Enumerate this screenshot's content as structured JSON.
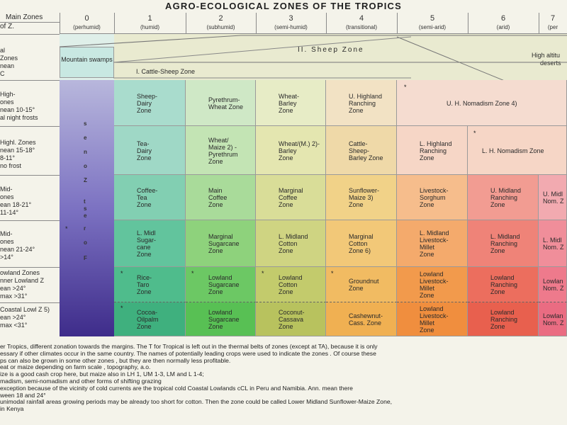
{
  "title": "AGRO-ECOLOGICAL ZONES OF THE TROPICS",
  "header": {
    "corner_line1": "Main Zones",
    "corner_line2": "of Z."
  },
  "columns": [
    {
      "num": "0",
      "sub": "(perhumid)"
    },
    {
      "num": "1",
      "sub": "(humid)"
    },
    {
      "num": "2",
      "sub": "(subhumid)"
    },
    {
      "num": "3",
      "sub": "(semi-humid)"
    },
    {
      "num": "4",
      "sub": "(transitional)"
    },
    {
      "num": "5",
      "sub": "(semi-arid)"
    },
    {
      "num": "6",
      "sub": "(arid)"
    },
    {
      "num": "7",
      "sub": "(per"
    }
  ],
  "row_labels": [
    [
      "al",
      "Zones",
      "nean",
      "C"
    ],
    [
      "High-",
      "ones",
      "nean 10-15°",
      "al night frosts"
    ],
    [
      "Highl. Zones",
      "nean 15-18°",
      "8-11°",
      "no frost"
    ],
    [
      "Mid-",
      "ones",
      "ean 18-21°",
      "11-14°"
    ],
    [
      "Mid-",
      "ones",
      "nean 21-24°",
      ">14°"
    ],
    [
      "owland Zones",
      "nner Lowland Z",
      "ean >24°",
      "max >31°"
    ],
    [
      "Coastal Lowl Z 5)",
      "ean >24°",
      "max <31°"
    ]
  ],
  "top_zones": {
    "mountain": "Mountain swamps",
    "sheep": "II. Sheep Zone",
    "cattle_sheep": "I. Cattle-Sheep Zone",
    "high_alt": "High altitu",
    "deserts": "deserts"
  },
  "forest_label": [
    "F",
    "o",
    "r",
    "e",
    "s",
    "t",
    "Z",
    "o",
    "n",
    "e",
    "s"
  ],
  "cells": {
    "r1c1": "Sheep-\nDairy\nZone",
    "r1c2": "Pyrethrum-\nWheat Zone",
    "r1c3": "Wheat-\nBarley\nZone",
    "r1c4": "U. Highland\nRanching\nZone",
    "r1c5": "U. H. Nomadism Zone 4)",
    "r2c1": "Tea-\nDairy\nZone",
    "r2c2": "Wheat/\nMaize 2) -\nPyrethrum\nZone",
    "r2c3": "Wheat/(M.) 2)-\nBarley\nZone",
    "r2c4": "Cattle-\nSheep-\nBarley Zone",
    "r2c5": "L. Highland\nRanching\nZone",
    "r2c6": "L. H. Nomadism Zone",
    "r3c1": "Coffee-\nTea\nZone",
    "r3c2": "Main\nCoffee\nZone",
    "r3c3": "Marginal\nCoffee\nZone",
    "r3c4": "Sunflower-\nMaize 3)\nZone",
    "r3c5": "Livestock-\nSorghum\nZone",
    "r3c6": "U. Midland\nRanching\nZone",
    "r3c7": "U. Midl\nNom. Z",
    "r4c1": "L. Midl\nSugar-\ncane\nZone",
    "r4c2": "Marginal\nSugarcane\nZone",
    "r4c3": "L. Midland\nCotton\nZone",
    "r4c4": "Marginal\nCotton\nZone 6)",
    "r4c5": "L. Midland\nLivestock-\nMillet\nZone",
    "r4c6": "L. Midland\nRanching\nZone",
    "r4c7": "L. Midl\nNom. Z",
    "r5c1": "Rice-\nTaro\nZone",
    "r5c2": "Lowland\nSugarcane\nZone",
    "r5c3": "Lowland\nCotton\nZone",
    "r5c4": "Groundnut\nZone",
    "r5c5": "Lowland\nLivestock-\nMillet\nZone",
    "r5c6": "Lowland\nRanching\nZone",
    "r5c7": "Lowlan\nNom. Z",
    "r6c1": "Cocoa-\nOilpalm\nZone",
    "r6c2": "Lowland\nSugarcane\nZone",
    "r6c3": "Coconut-\nCassava\nZone",
    "r6c4": "Cashewnut-\nCass. Zone",
    "r6c5": "Lowland\nLivestock-\nMillet\nZone",
    "r6c6": "Lowland\nRanching\nZone",
    "r6c7": "Lowlan\nNom. Z"
  },
  "stars": "*",
  "footnotes": [
    "er Tropics, different zonation towards the margins. The T for Tropical is left out in the thermal belts of zones (except at TA), because it is only",
    "essary if other climates occur in the same country. The names of potentially leading crops were used to indicate the zones . Of course these",
    "ps can also be grown in some other zones , but they are then normally less profitable.",
    "eat or maize depending on farm scale , topography, a.o.",
    "ize is a good cash crop here, but maize also in LH 1, UM 1-3, LM and L 1-4;",
    "madism, semi-nomadism and other forms of shifting grazing",
    "exception because of the vicinity of cold currents are the tropical cold Coastal Lowlands cCL in Peru and Namibia. Ann. mean there",
    "ween 18 and 24°",
    "unimodal rainfall areas growing periods may be already too short for cotton. Then the zone could be called Lower Midland Sunflower-Maize Zone,",
    "in Kenya"
  ],
  "colors": {
    "forest_top": "#b7b6da",
    "forest_bottom": "#4a3a92",
    "humid": "#a9dccc",
    "subhumid": "#bde3a8",
    "semihumid": "#e8e6b8",
    "transitional": "#f2dcaa",
    "semiarid": "#f6c3a2",
    "arid": "#f2b5b8"
  }
}
